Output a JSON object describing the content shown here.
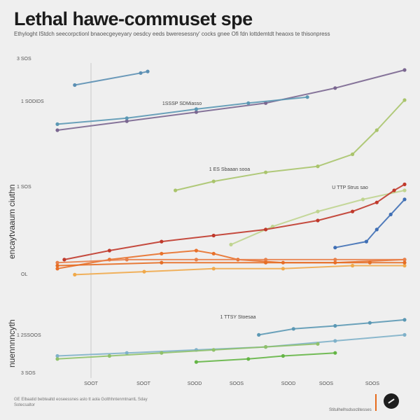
{
  "chart_data": {
    "type": "line",
    "title": "Lethal hawe-commuset spe",
    "subtitle": "Ethyloght lStdch seecorpctionl bnaoecgeyeyary oesdcy eeds bweresessny' cocks gnee Ofi fdn lottdemtdt heaoxs te thisonpress",
    "ylabel": "encaytvaaum ciuthn",
    "ylabel_lower": "nuennnncyth",
    "xlabel": "",
    "x_ticks": [
      "SOOT",
      "SOOT",
      "SOOD",
      "SOOS",
      "SOOD",
      "SOOS",
      "SOOS"
    ],
    "y_ticks": [
      "3 SOS",
      "1 SODIDS",
      "1 SOS",
      "OL",
      "1 2SSOOS",
      "3 SOS"
    ],
    "annotations": [
      "1SSSP SDMiasso",
      "1 ES Sbaaan sooa",
      "U TTP Strus sao",
      "1 TTSY Stoesaa"
    ],
    "series": [
      {
        "color": "#5b8fb3",
        "points": [
          [
            5,
            95
          ],
          [
            24,
            99
          ],
          [
            26,
            99.5
          ]
        ]
      },
      {
        "color": "#7a6690",
        "points": [
          [
            0,
            80
          ],
          [
            20,
            83
          ],
          [
            40,
            86
          ],
          [
            60,
            89
          ],
          [
            80,
            94
          ],
          [
            100,
            100
          ]
        ]
      },
      {
        "color": "#5b98b4",
        "points": [
          [
            0,
            82
          ],
          [
            20,
            84
          ],
          [
            40,
            87
          ],
          [
            55,
            89
          ],
          [
            72,
            91
          ]
        ]
      },
      {
        "color": "#a9c46b",
        "points": [
          [
            34,
            60
          ],
          [
            45,
            63
          ],
          [
            60,
            66
          ],
          [
            75,
            68
          ],
          [
            85,
            72
          ],
          [
            92,
            80
          ],
          [
            100,
            90
          ]
        ]
      },
      {
        "color": "#bfd48f",
        "points": [
          [
            50,
            42
          ],
          [
            62,
            48
          ],
          [
            75,
            53
          ],
          [
            88,
            57
          ],
          [
            100,
            60
          ]
        ]
      },
      {
        "color": "#c0392b",
        "points": [
          [
            2,
            37
          ],
          [
            15,
            40
          ],
          [
            30,
            43
          ],
          [
            45,
            45
          ],
          [
            60,
            47
          ],
          [
            75,
            50
          ],
          [
            85,
            53
          ],
          [
            92,
            56
          ],
          [
            97,
            60
          ],
          [
            100,
            62
          ]
        ]
      },
      {
        "color": "#3f6fb5",
        "points": [
          [
            80,
            41
          ],
          [
            89,
            43
          ],
          [
            92,
            47
          ],
          [
            96,
            52
          ],
          [
            100,
            57
          ]
        ]
      },
      {
        "color": "#e8702a",
        "points": [
          [
            0,
            34
          ],
          [
            15,
            37
          ],
          [
            30,
            39
          ],
          [
            40,
            40
          ],
          [
            45,
            39
          ],
          [
            52,
            37
          ],
          [
            65,
            36
          ],
          [
            80,
            36
          ],
          [
            100,
            37
          ]
        ]
      },
      {
        "color": "#e8804a",
        "points": [
          [
            0,
            36
          ],
          [
            20,
            37
          ],
          [
            40,
            37
          ],
          [
            60,
            37
          ],
          [
            80,
            37
          ],
          [
            100,
            37
          ]
        ]
      },
      {
        "color": "#f0a94a",
        "points": [
          [
            5,
            32
          ],
          [
            25,
            33
          ],
          [
            45,
            34
          ],
          [
            65,
            34
          ],
          [
            85,
            35
          ],
          [
            100,
            35
          ]
        ]
      },
      {
        "color": "#e56d24",
        "points": [
          [
            0,
            35
          ],
          [
            30,
            36
          ],
          [
            60,
            36
          ],
          [
            90,
            36
          ],
          [
            100,
            36
          ]
        ]
      },
      {
        "color": "#5b98b4",
        "points": [
          [
            58,
            12
          ],
          [
            68,
            14
          ],
          [
            80,
            15
          ],
          [
            90,
            16
          ],
          [
            100,
            17
          ]
        ]
      },
      {
        "color": "#7fb1c9",
        "points": [
          [
            0,
            5
          ],
          [
            20,
            6
          ],
          [
            40,
            7
          ],
          [
            60,
            8
          ],
          [
            80,
            10
          ],
          [
            100,
            12
          ]
        ]
      },
      {
        "color": "#8fc16a",
        "points": [
          [
            0,
            4
          ],
          [
            15,
            5
          ],
          [
            30,
            6
          ],
          [
            45,
            7
          ],
          [
            60,
            8
          ],
          [
            75,
            9
          ]
        ]
      },
      {
        "color": "#64b545",
        "points": [
          [
            40,
            3
          ],
          [
            55,
            4
          ],
          [
            65,
            5
          ],
          [
            80,
            6
          ]
        ]
      }
    ]
  },
  "footer": {
    "note": "GE Elbaatid bebtealtd eoseessnes aslo tt aola GolthhntenmtnantL Sday Sotecsaltor",
    "brand": "Stitulhelhsdsoctitesses"
  }
}
